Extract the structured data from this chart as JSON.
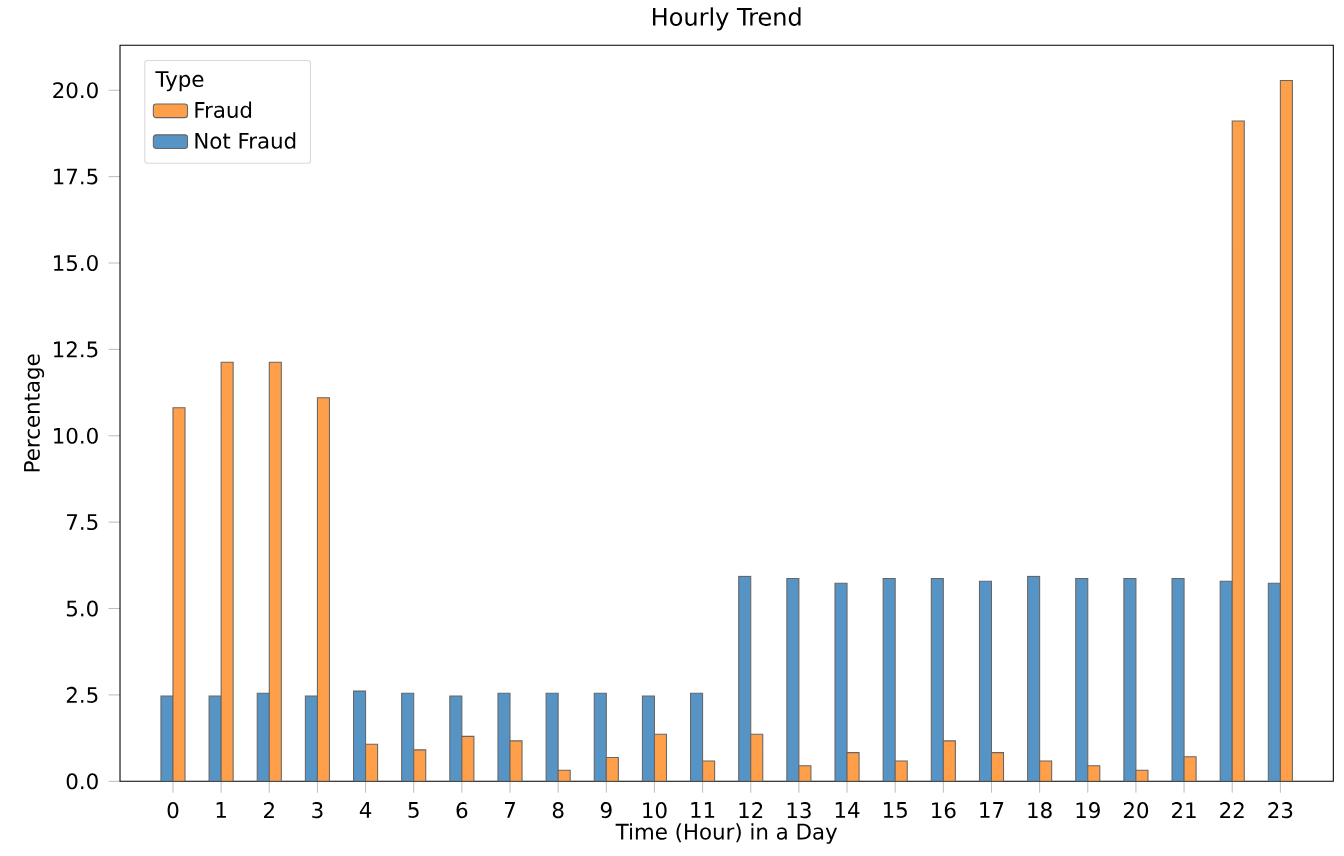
{
  "chart_data": {
    "type": "bar",
    "title": "Hourly Trend",
    "xlabel": "Time (Hour) in a Day",
    "ylabel": "Percentage",
    "legend_title": "Type",
    "legend": "top left",
    "x": [
      0,
      1,
      2,
      3,
      4,
      5,
      6,
      7,
      8,
      9,
      10,
      11,
      12,
      13,
      14,
      15,
      16,
      17,
      18,
      19,
      20,
      21,
      22,
      23
    ],
    "xlim": [
      -1.1,
      24.1
    ],
    "xticks": [
      0,
      1,
      2,
      3,
      4,
      5,
      6,
      7,
      8,
      9,
      10,
      11,
      12,
      13,
      14,
      15,
      16,
      17,
      18,
      19,
      20,
      21,
      22,
      23
    ],
    "ylim": [
      0,
      21.3
    ],
    "yticks": [
      {
        "value": 0,
        "label": "0.0"
      },
      {
        "value": 2.5,
        "label": "2.5"
      },
      {
        "value": 5,
        "label": "5.0"
      },
      {
        "value": 7.5,
        "label": "7.5"
      },
      {
        "value": 10,
        "label": "10.0"
      },
      {
        "value": 12.5,
        "label": "12.5"
      },
      {
        "value": 15,
        "label": "15.0"
      },
      {
        "value": 17.5,
        "label": "17.5"
      },
      {
        "value": 20,
        "label": "20.0"
      }
    ],
    "series": [
      {
        "name": "Fraud",
        "color": "#ff9f4a",
        "values": [
          10.81,
          12.13,
          12.13,
          11.1,
          1.07,
          0.91,
          1.3,
          1.17,
          0.32,
          0.69,
          1.36,
          0.59,
          1.36,
          0.45,
          0.83,
          0.59,
          1.17,
          0.83,
          0.59,
          0.45,
          0.32,
          0.71,
          19.11,
          20.28
        ]
      },
      {
        "name": "Not Fraud",
        "color": "#5794c6",
        "values": [
          2.47,
          2.47,
          2.55,
          2.47,
          2.61,
          2.55,
          2.47,
          2.55,
          2.55,
          2.55,
          2.47,
          2.55,
          5.93,
          5.87,
          5.73,
          5.87,
          5.87,
          5.79,
          5.93,
          5.87,
          5.87,
          5.87,
          5.79,
          5.73
        ]
      }
    ]
  }
}
